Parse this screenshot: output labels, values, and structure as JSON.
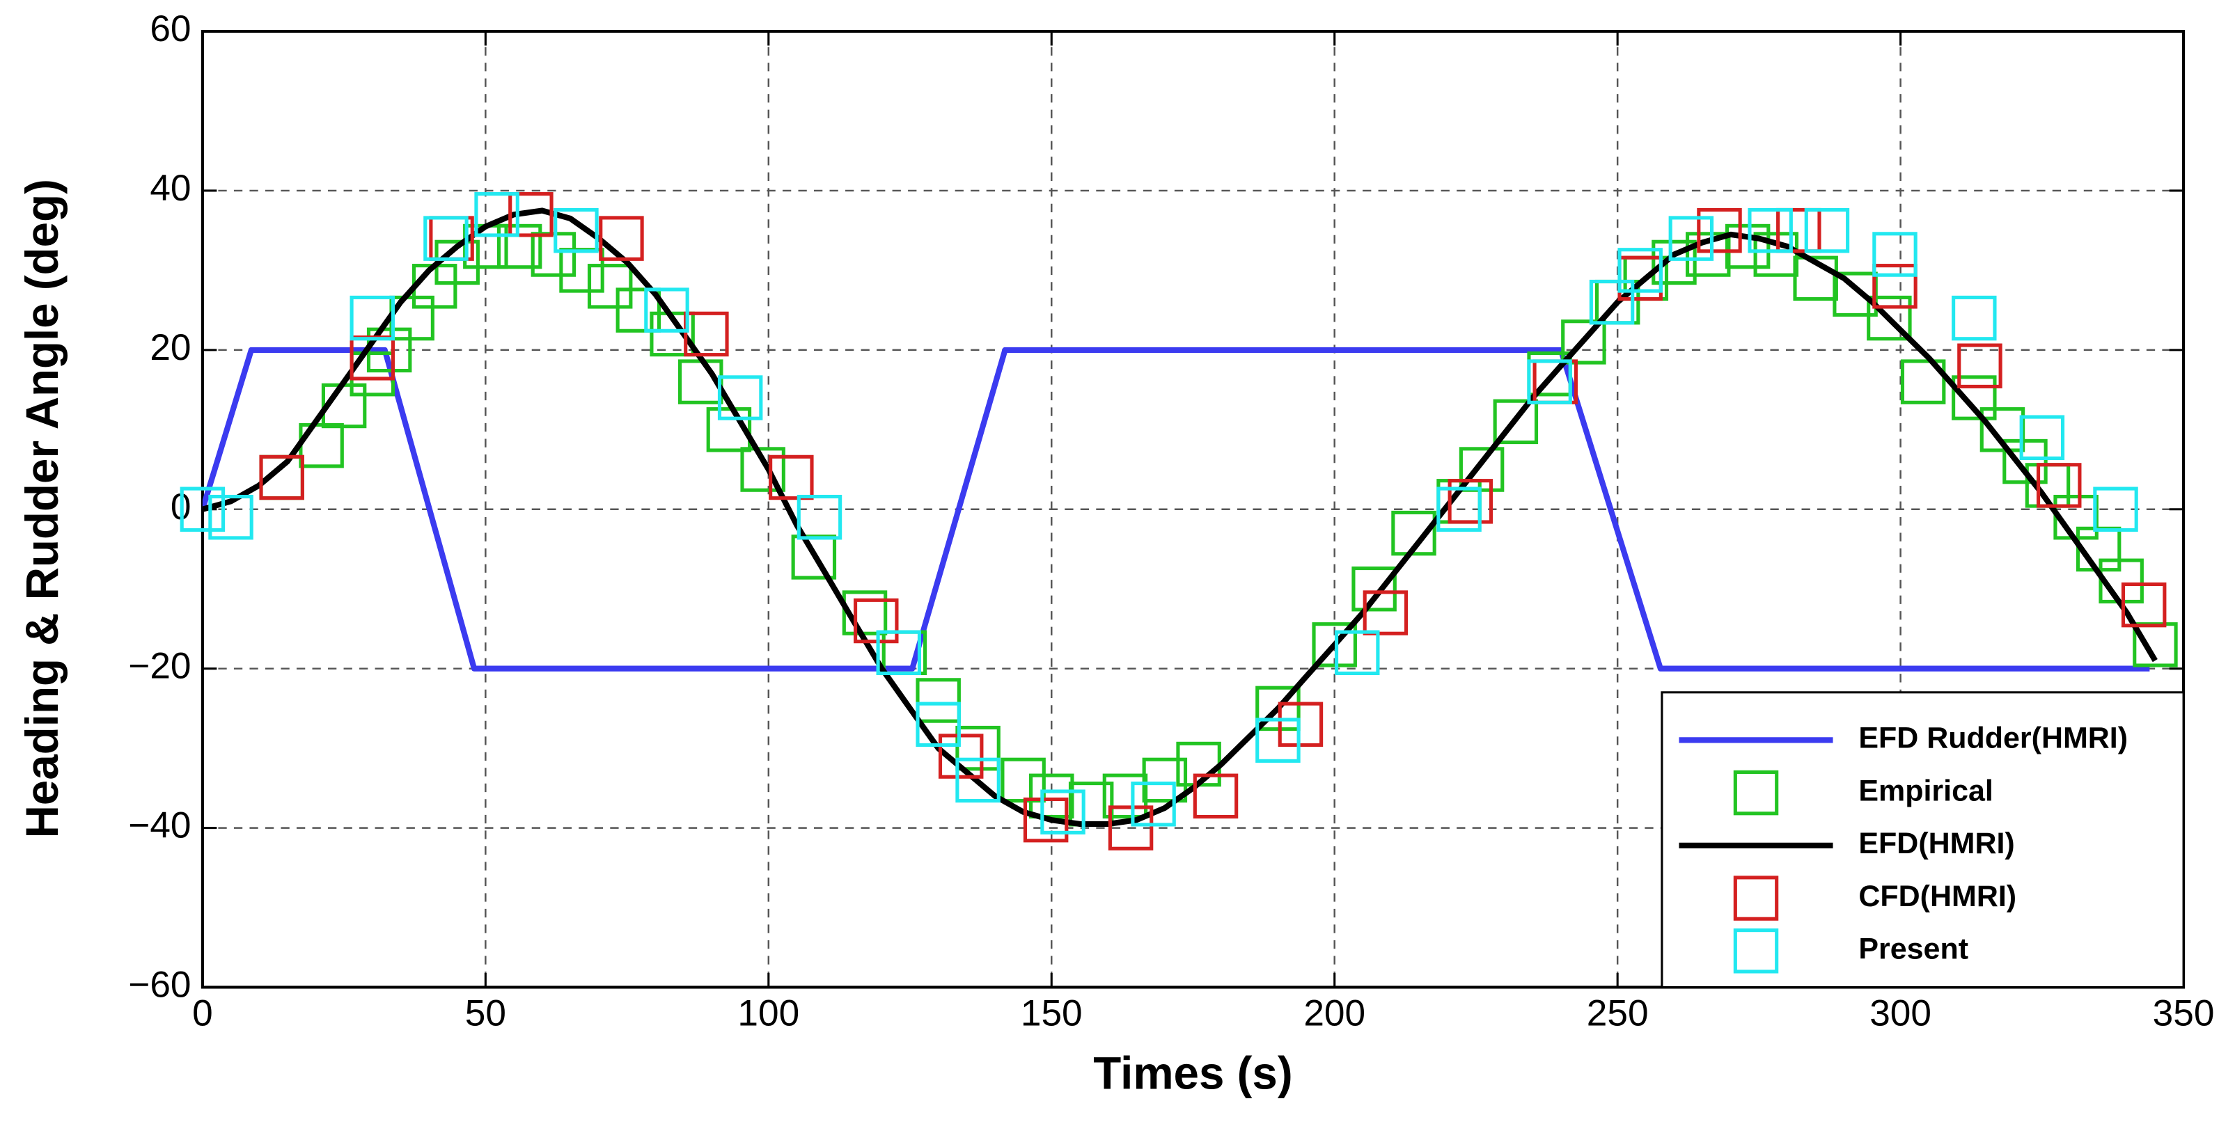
{
  "chart_data": {
    "type": "line",
    "x_label": "Times (s)",
    "y_label": "Heading & Rudder Angle (deg)",
    "xlim": [
      0,
      350
    ],
    "ylim": [
      -60,
      60
    ],
    "xticks": [
      0,
      50,
      100,
      150,
      200,
      250,
      300,
      350
    ],
    "yticks": [
      {
        "value": -60,
        "label": "−60"
      },
      {
        "value": -40,
        "label": "−40"
      },
      {
        "value": -20,
        "label": "−20"
      },
      0,
      20,
      40,
      60
    ],
    "grid": true,
    "legend": "lower right",
    "series": [
      {
        "name": "EFD Rudder(HMRI)",
        "color": "#3b3bf0",
        "style": "line",
        "x": [
          0,
          8.6,
          32.2,
          48,
          125.4,
          141.8,
          240,
          257.6,
          344
        ],
        "values": [
          0,
          20,
          20,
          -20,
          -20,
          20,
          20,
          -20,
          -20
        ]
      },
      {
        "name": "Empirical",
        "color": "#22c422",
        "style": "square",
        "x": [
          14,
          21,
          25,
          30,
          33,
          37,
          41,
          45,
          50,
          56,
          62,
          67,
          72,
          77,
          83,
          88,
          93,
          99,
          108,
          117,
          124,
          130,
          137,
          145,
          150,
          157,
          163,
          170,
          176,
          190,
          200,
          207,
          214,
          222,
          226,
          232,
          238,
          244,
          250,
          255,
          260,
          266,
          273,
          278,
          285,
          292,
          298,
          304,
          313,
          318,
          322,
          326,
          331,
          335,
          339,
          345
        ],
        "values": [
          4,
          8,
          13,
          17,
          20,
          24,
          28,
          31,
          33,
          33,
          32,
          30,
          28,
          25,
          22,
          16,
          10,
          5,
          -6,
          -13,
          -18,
          -24,
          -30,
          -34,
          -36,
          -37,
          -36,
          -34,
          -32,
          -25,
          -17,
          -10,
          -3,
          1,
          5,
          11,
          17,
          21,
          26,
          29,
          31,
          32,
          33,
          32,
          29,
          27,
          24,
          16,
          14,
          10,
          6,
          3,
          -1,
          -5,
          -9,
          -17
        ]
      },
      {
        "name": "EFD(HMRI)",
        "color": "#000000",
        "style": "line",
        "x": [
          0,
          5,
          10,
          15,
          20,
          25,
          30,
          35,
          40,
          45,
          50,
          55,
          60,
          65,
          70,
          75,
          80,
          85,
          90,
          95,
          100,
          105,
          110,
          115,
          120,
          125,
          130,
          135,
          140,
          145,
          150,
          155,
          160,
          165,
          170,
          175,
          180,
          185,
          190,
          195,
          200,
          205,
          210,
          215,
          220,
          225,
          230,
          235,
          240,
          245,
          250,
          255,
          260,
          265,
          270,
          275,
          280,
          285,
          290,
          295,
          300,
          305,
          310,
          315,
          320,
          325,
          330,
          335,
          340,
          345
        ],
        "values": [
          0,
          1,
          3,
          6,
          11,
          16,
          21,
          26,
          30,
          33,
          35.5,
          37,
          37.5,
          36.5,
          34,
          31,
          27,
          22,
          17,
          11,
          5,
          -2,
          -8,
          -14,
          -20,
          -25,
          -30,
          -33,
          -36,
          -38,
          -39,
          -39.5,
          -39.5,
          -39,
          -37.5,
          -35,
          -32,
          -28.5,
          -25,
          -21,
          -17,
          -13,
          -8.5,
          -4,
          0.5,
          5,
          9.5,
          14,
          18,
          22,
          26,
          29,
          32,
          33.5,
          34.5,
          34,
          33,
          31,
          29,
          26,
          22.5,
          19,
          15,
          11,
          6.5,
          2,
          -3,
          -8,
          -13,
          -19
        ]
      },
      {
        "name": "CFD(HMRI)",
        "color": "#d42020",
        "style": "square",
        "x": [
          14,
          30,
          44,
          58,
          74,
          89,
          104,
          119,
          134,
          149,
          164,
          179,
          194,
          209,
          224,
          239,
          254,
          268,
          282,
          299,
          314,
          328,
          343
        ],
        "values": [
          4,
          19,
          34,
          37,
          34,
          22,
          4,
          -14,
          -31,
          -39,
          -40,
          -36,
          -27,
          -13,
          1,
          16,
          29,
          35,
          35,
          28,
          18,
          3,
          -12
        ]
      },
      {
        "name": "Present",
        "color": "#22e8f0",
        "style": "square",
        "x": [
          0,
          5,
          30,
          43,
          52,
          66,
          82,
          95,
          109,
          123,
          130,
          137,
          152,
          168,
          190,
          204,
          222,
          238,
          249,
          254,
          263,
          277,
          287,
          299,
          313,
          325,
          338
        ],
        "values": [
          0,
          -1,
          24,
          34,
          37,
          35,
          25,
          14,
          -1,
          -18,
          -27,
          -34,
          -38,
          -37,
          -29,
          -18,
          0,
          16,
          26,
          30,
          34,
          35,
          35,
          32,
          24,
          9,
          0
        ]
      }
    ]
  }
}
